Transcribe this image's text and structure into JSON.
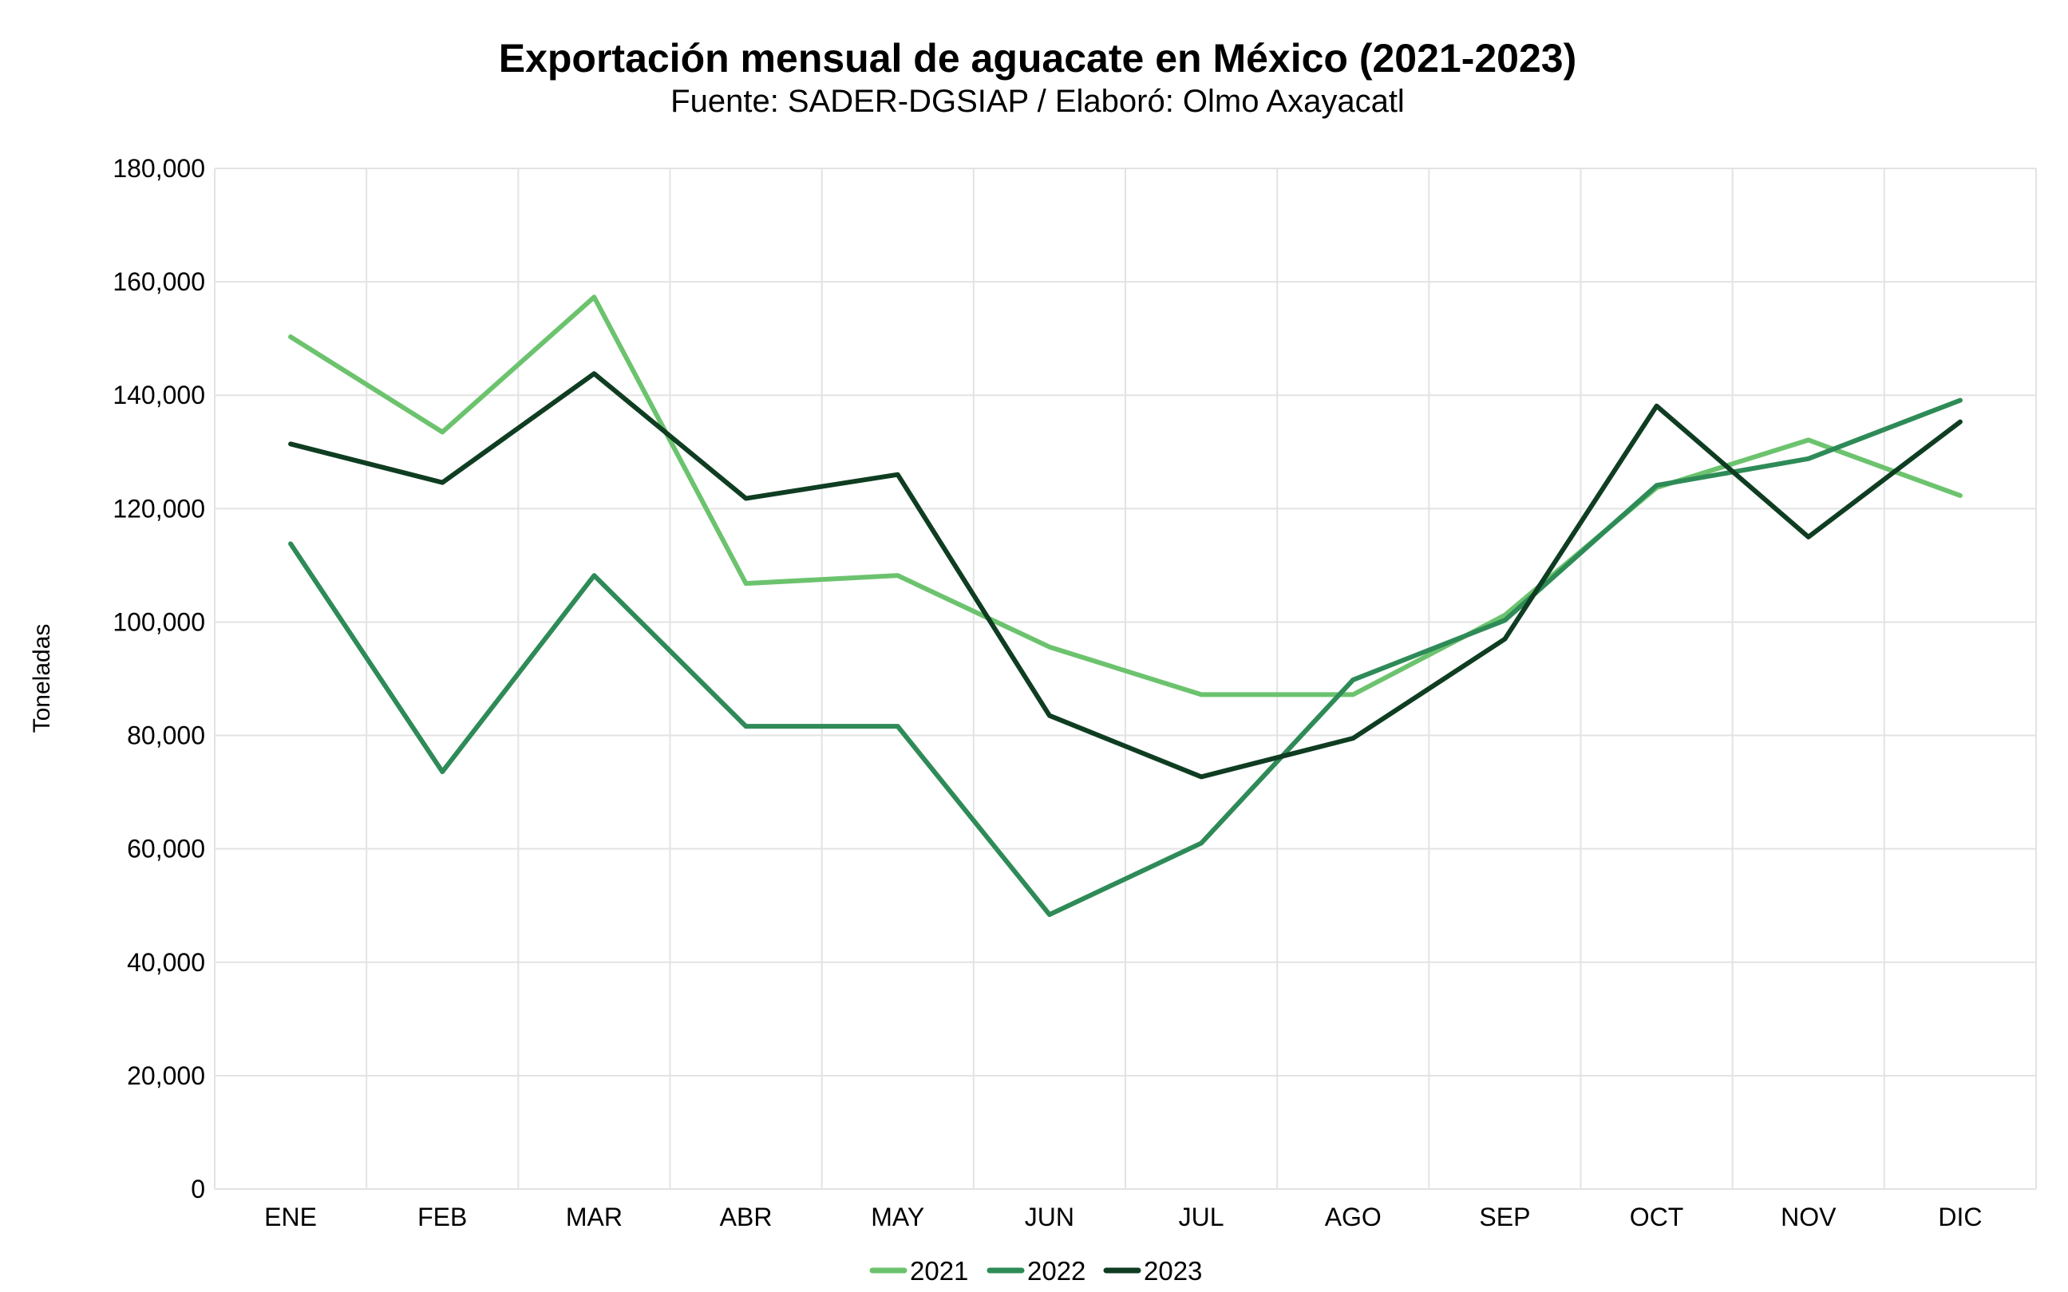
{
  "chart_data": {
    "type": "line",
    "title": "Exportación mensual de aguacate en México (2021-2023)",
    "subtitle": "Fuente: SADER-DGSIAP / Elaboró: Olmo Axayacatl",
    "xlabel": "",
    "ylabel": "Toneladas",
    "categories": [
      "ENE",
      "FEB",
      "MAR",
      "ABR",
      "MAY",
      "JUN",
      "JUL",
      "AGO",
      "SEP",
      "OCT",
      "NOV",
      "DIC"
    ],
    "ylim": [
      0,
      180000
    ],
    "yticks": [
      0,
      20000,
      40000,
      60000,
      80000,
      100000,
      120000,
      140000,
      160000,
      180000
    ],
    "ytick_labels": [
      "0",
      "20,000",
      "40,000",
      "60,000",
      "80,000",
      "100,000",
      "120,000",
      "140,000",
      "160,000",
      "180,000"
    ],
    "grid": true,
    "legend": "bottom",
    "series": [
      {
        "name": "2021",
        "color": "#6cc36e",
        "values": [
          150300,
          133500,
          157300,
          106800,
          108200,
          95600,
          87200,
          87200,
          101200,
          123700,
          132100,
          122300
        ]
      },
      {
        "name": "2022",
        "color": "#2e8b57",
        "values": [
          113800,
          73600,
          108200,
          81600,
          81600,
          48400,
          61000,
          89800,
          100300,
          124100,
          128800,
          139100
        ]
      },
      {
        "name": "2023",
        "color": "#0f3d22",
        "values": [
          131400,
          124600,
          143800,
          121800,
          126000,
          83500,
          72700,
          79500,
          97000,
          138100,
          115000,
          135300
        ]
      }
    ]
  }
}
